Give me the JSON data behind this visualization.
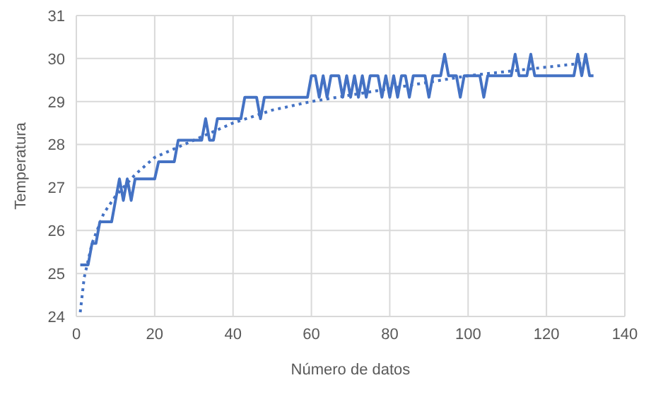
{
  "chart_data": {
    "type": "line",
    "xlabel": "Número de datos",
    "ylabel": "Temperatura",
    "x": [
      1,
      2,
      3,
      4,
      5,
      6,
      7,
      8,
      9,
      10,
      11,
      12,
      13,
      14,
      15,
      16,
      17,
      18,
      19,
      20,
      21,
      22,
      23,
      24,
      25,
      26,
      27,
      28,
      29,
      30,
      31,
      32,
      33,
      34,
      35,
      36,
      37,
      38,
      39,
      40,
      41,
      42,
      43,
      44,
      45,
      46,
      47,
      48,
      49,
      50,
      51,
      52,
      53,
      54,
      55,
      56,
      57,
      58,
      59,
      60,
      61,
      62,
      63,
      64,
      65,
      66,
      67,
      68,
      69,
      70,
      71,
      72,
      73,
      74,
      75,
      76,
      77,
      78,
      79,
      80,
      81,
      82,
      83,
      84,
      85,
      86,
      87,
      88,
      89,
      90,
      91,
      92,
      93,
      94,
      95,
      96,
      97,
      98,
      99,
      100,
      101,
      102,
      103,
      104,
      105,
      106,
      107,
      108,
      109,
      110,
      111,
      112,
      113,
      114,
      115,
      116,
      117,
      118,
      119,
      120,
      121,
      122,
      123,
      124,
      125,
      126,
      127,
      128,
      129,
      130,
      131,
      132
    ],
    "series": [
      {
        "color": "#4472c4",
        "line_style": "solid",
        "values": [
          25.2,
          25.2,
          25.2,
          25.7,
          25.7,
          26.2,
          26.2,
          26.2,
          26.2,
          26.7,
          27.2,
          26.7,
          27.2,
          26.7,
          27.2,
          27.2,
          27.2,
          27.2,
          27.2,
          27.2,
          27.6,
          27.6,
          27.6,
          27.6,
          27.6,
          28.1,
          28.1,
          28.1,
          28.1,
          28.1,
          28.1,
          28.1,
          28.6,
          28.1,
          28.1,
          28.6,
          28.6,
          28.6,
          28.6,
          28.6,
          28.6,
          28.6,
          29.1,
          29.1,
          29.1,
          29.1,
          28.6,
          29.1,
          29.1,
          29.1,
          29.1,
          29.1,
          29.1,
          29.1,
          29.1,
          29.1,
          29.1,
          29.1,
          29.1,
          29.6,
          29.6,
          29.1,
          29.6,
          29.1,
          29.6,
          29.6,
          29.6,
          29.1,
          29.6,
          29.1,
          29.6,
          29.1,
          29.6,
          29.1,
          29.6,
          29.6,
          29.6,
          29.1,
          29.6,
          29.1,
          29.6,
          29.1,
          29.6,
          29.6,
          29.1,
          29.6,
          29.6,
          29.6,
          29.6,
          29.1,
          29.6,
          29.6,
          29.6,
          30.1,
          29.6,
          29.6,
          29.6,
          29.1,
          29.6,
          29.6,
          29.6,
          29.6,
          29.6,
          29.1,
          29.6,
          29.6,
          29.6,
          29.6,
          29.6,
          29.6,
          29.6,
          30.1,
          29.6,
          29.6,
          29.6,
          30.1,
          29.6,
          29.6,
          29.6,
          29.6,
          29.6,
          29.6,
          29.6,
          29.6,
          29.6,
          29.6,
          29.6,
          30.1,
          29.6,
          30.1,
          29.6,
          29.6
        ]
      },
      {
        "type": "line",
        "color": "#4472c4",
        "line_style": "dotted",
        "x": [
          1,
          2,
          4,
          7,
          10,
          15,
          20,
          30,
          40,
          50,
          60,
          80,
          100,
          130
        ],
        "values": [
          24.1,
          24.9,
          25.7,
          26.4,
          26.8,
          27.3,
          27.7,
          28.1,
          28.5,
          28.8,
          29.0,
          29.3,
          29.6,
          29.9
        ]
      }
    ],
    "xlim": [
      0,
      140
    ],
    "xticks": [
      0,
      20,
      40,
      60,
      80,
      100,
      120,
      140
    ],
    "ylim": [
      24,
      31
    ],
    "yticks": [
      24,
      25,
      26,
      27,
      28,
      29,
      30,
      31
    ],
    "grid": true,
    "marker": "none"
  }
}
